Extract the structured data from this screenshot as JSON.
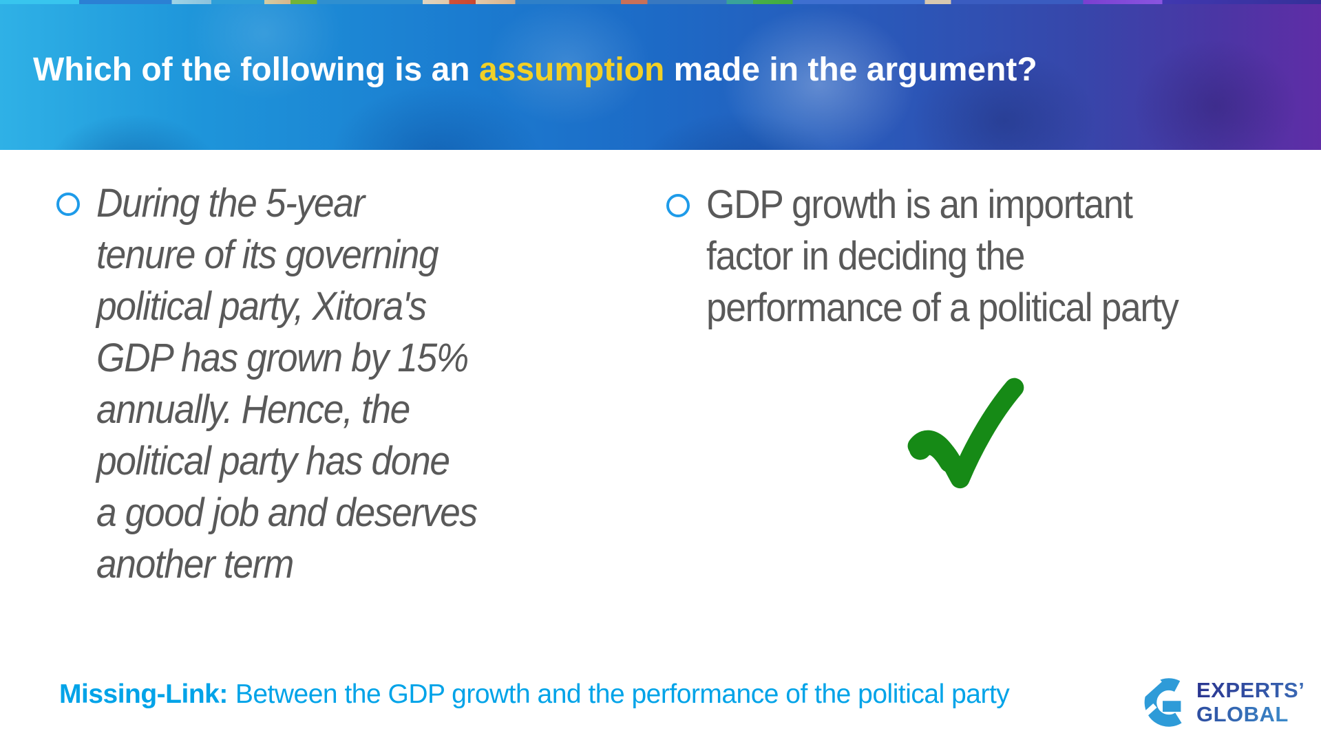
{
  "title": {
    "prefix": "Which of the following is an ",
    "highlight": "assumption",
    "suffix": " made in the argument?"
  },
  "options": [
    {
      "lines": [
        "During the 5-year",
        "tenure of its governing",
        "political party, Xitora's",
        "GDP has grown by 15%",
        "annually. Hence, the",
        "political party has done",
        "a good job and deserves",
        "another term"
      ]
    },
    {
      "lines": [
        "GDP growth is an important",
        "factor in deciding the",
        "performance of a political party"
      ]
    }
  ],
  "answer_mark": {
    "icon": "green-checkmark"
  },
  "footer": {
    "label": "Missing-Link:",
    "text": "Between the GDP growth and the performance of the political party"
  },
  "logo": {
    "line1": "EXPERTS’",
    "line2": "GLOBAL"
  },
  "colors": {
    "title_highlight": "#F2D026",
    "bullet_blue": "#1E9BE9",
    "body_gray": "#595959",
    "footer_blue": "#00A3E8",
    "check_green": "#168A16",
    "logo_blue": "#2E9BD8"
  }
}
